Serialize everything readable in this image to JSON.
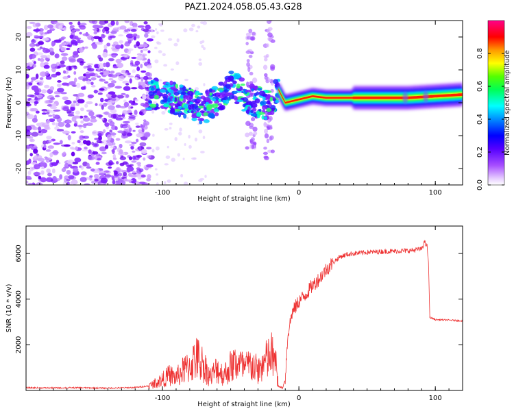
{
  "title": "PAZ1.2024.058.05.43.G28",
  "chart_data": [
    {
      "type": "heatmap",
      "xlabel": "Height of straight line (km)",
      "ylabel": "Frequency (Hz)",
      "xlim": [
        -200,
        120
      ],
      "ylim": [
        -25,
        25
      ],
      "xticks": [
        -100,
        0,
        100
      ],
      "yticks": [
        -20,
        -10,
        0,
        10,
        20
      ],
      "colorbar": {
        "label": "Normalized spectral amplitude",
        "range": [
          0,
          1
        ],
        "ticks": [
          0.0,
          0.2,
          0.4,
          0.6,
          0.8
        ],
        "tick_labels": [
          "0.0",
          "0.2",
          "0.4",
          "0.6",
          "0.8"
        ],
        "colormap": [
          "#ffffff",
          "#8000ff",
          "#0000ff",
          "#00ffff",
          "#00ff00",
          "#ffff00",
          "#ff8000",
          "#ff0000",
          "#ff00aa"
        ]
      },
      "trace": [
        {
          "x": -110,
          "y": 2
        },
        {
          "x": -100,
          "y": 3
        },
        {
          "x": -90,
          "y": 1
        },
        {
          "x": -80,
          "y": 0
        },
        {
          "x": -70,
          "y": -2
        },
        {
          "x": -60,
          "y": 1
        },
        {
          "x": -50,
          "y": 6
        },
        {
          "x": -40,
          "y": 2
        },
        {
          "x": -30,
          "y": 0
        },
        {
          "x": -20,
          "y": -1
        },
        {
          "x": -15,
          "y": 4
        },
        {
          "x": -10,
          "y": 0
        },
        {
          "x": 0,
          "y": 1
        },
        {
          "x": 10,
          "y": 2
        },
        {
          "x": 20,
          "y": 1.5
        },
        {
          "x": 40,
          "y": 1.5
        },
        {
          "x": 60,
          "y": 1.5
        },
        {
          "x": 80,
          "y": 1.5
        },
        {
          "x": 100,
          "y": 2
        },
        {
          "x": 120,
          "y": 2.5
        }
      ]
    },
    {
      "type": "line",
      "xlabel": "Height of straight line (km)",
      "ylabel": "SNR (10 * v/v)",
      "xlim": [
        -200,
        120
      ],
      "ylim": [
        0,
        7200
      ],
      "xticks": [
        -100,
        0,
        100
      ],
      "yticks": [
        2000,
        4000,
        6000
      ],
      "color": "#ee3333",
      "series": [
        {
          "x": [
            -200,
            -180,
            -160,
            -140,
            -120,
            -110,
            -100,
            -95,
            -90,
            -85,
            -80,
            -75,
            -70,
            -65,
            -60,
            -55,
            -50,
            -45,
            -40,
            -35,
            -30,
            -25,
            -20,
            -17,
            -15,
            -12,
            -10,
            -8,
            -5,
            0,
            5,
            10,
            15,
            20,
            25,
            30,
            35,
            40,
            50,
            60,
            70,
            80,
            85,
            90,
            92,
            94,
            95,
            96,
            100,
            110,
            120
          ],
          "values": [
            120,
            110,
            120,
            100,
            130,
            200,
            500,
            700,
            600,
            900,
            1100,
            1500,
            1200,
            600,
            1000,
            700,
            1100,
            1300,
            1000,
            1200,
            900,
            1300,
            1600,
            1200,
            200,
            100,
            500,
            2500,
            3400,
            3900,
            4200,
            4600,
            4900,
            5300,
            5600,
            5850,
            5950,
            6000,
            6050,
            6080,
            6100,
            6120,
            6150,
            6200,
            6500,
            6300,
            5600,
            3200,
            3100,
            3080,
            3050
          ]
        }
      ]
    }
  ]
}
